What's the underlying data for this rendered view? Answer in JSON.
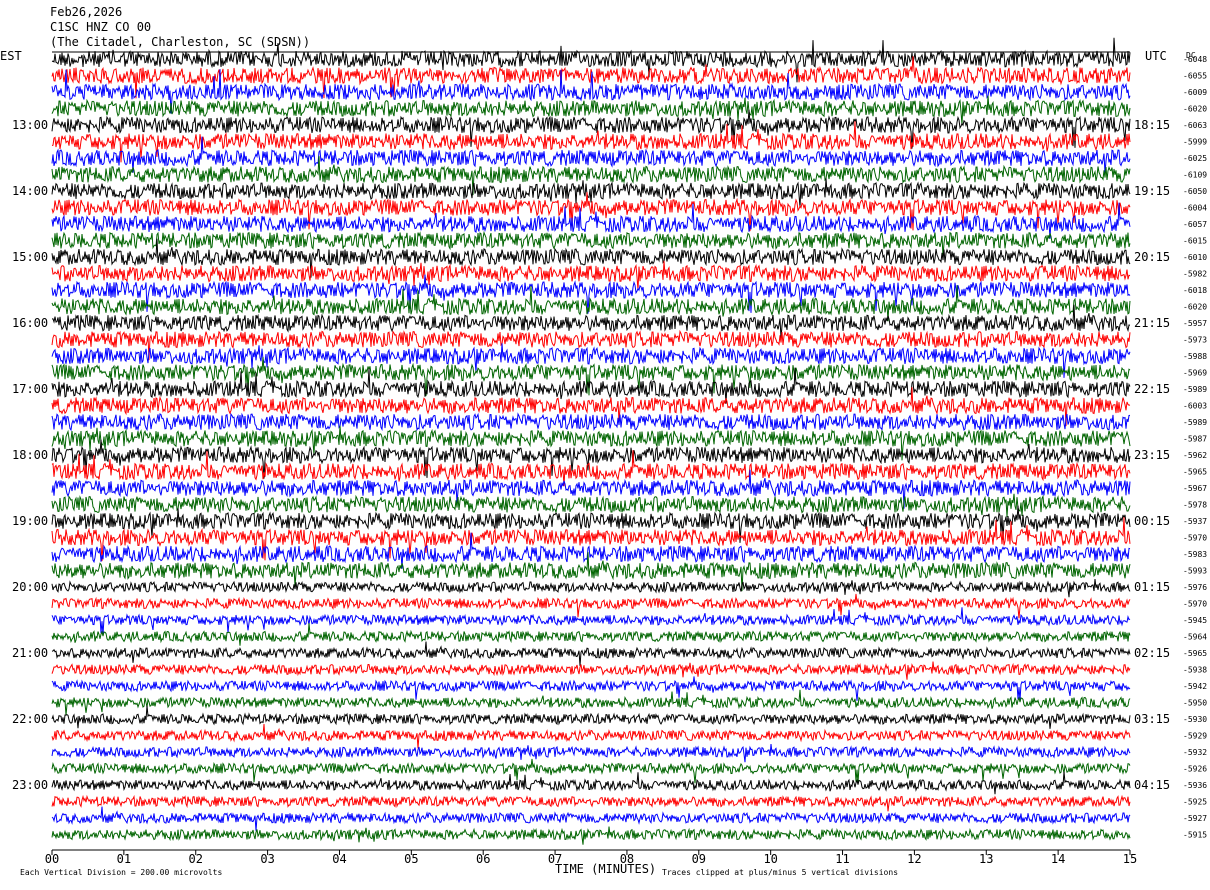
{
  "header": {
    "date": "Feb26,2026",
    "station": "C1SC HNZ CO 00",
    "location": "(The Citadel, Charleston, SC (SDSN))"
  },
  "left_zone": "EST",
  "right_zone": "UTC",
  "dc_title": "DC",
  "left_labels": [
    "13:00",
    "14:00",
    "15:00",
    "16:00",
    "17:00",
    "18:00",
    "19:00",
    "20:00",
    "21:00",
    "22:00",
    "23:00"
  ],
  "right_labels": [
    "18:15",
    "19:15",
    "20:15",
    "21:15",
    "22:15",
    "23:15",
    "00:15",
    "01:15",
    "02:15",
    "03:15",
    "04:15"
  ],
  "row_colors": [
    "#000000",
    "#ff0000",
    "#0000ff",
    "#006400"
  ],
  "dc_values": [
    -6048,
    -6055,
    -6009,
    -6020,
    -6063,
    -5999,
    -6025,
    -6109,
    -6050,
    -6004,
    -6057,
    -6015,
    -6010,
    -5982,
    -6018,
    -6020,
    -5957,
    -5973,
    -5988,
    -5969,
    -5989,
    -6003,
    -5989,
    -5987,
    -5962,
    -5965,
    -5967,
    -5978,
    -5937,
    -5970,
    -5983,
    -5993,
    -5976,
    -5970,
    -5945,
    -5964,
    -5965,
    -5938,
    -5942,
    -5950,
    -5930,
    -5929,
    -5932,
    -5926,
    -5936,
    -5925,
    -5927,
    -5915
  ],
  "xticks": [
    {
      "value": 0,
      "label": "00"
    },
    {
      "value": 1,
      "label": "01"
    },
    {
      "value": 2,
      "label": "02"
    },
    {
      "value": 3,
      "label": "03"
    },
    {
      "value": 4,
      "label": "04"
    },
    {
      "value": 5,
      "label": "05"
    },
    {
      "value": 6,
      "label": "06"
    },
    {
      "value": 7,
      "label": "07"
    },
    {
      "value": 8,
      "label": "08"
    },
    {
      "value": 9,
      "label": "09"
    },
    {
      "value": 10,
      "label": "10"
    },
    {
      "value": 11,
      "label": "11"
    },
    {
      "value": 12,
      "label": "12"
    },
    {
      "value": 13,
      "label": "13"
    },
    {
      "value": 14,
      "label": "14"
    },
    {
      "value": 15,
      "label": "15"
    }
  ],
  "xlim": [
    0,
    15
  ],
  "x_label": "TIME (MINUTES)",
  "footer": {
    "scale": "Each Vertical Division =  200.00 microvolts",
    "clip": "Traces clipped at plus/minus 5 vertical divisions"
  }
}
